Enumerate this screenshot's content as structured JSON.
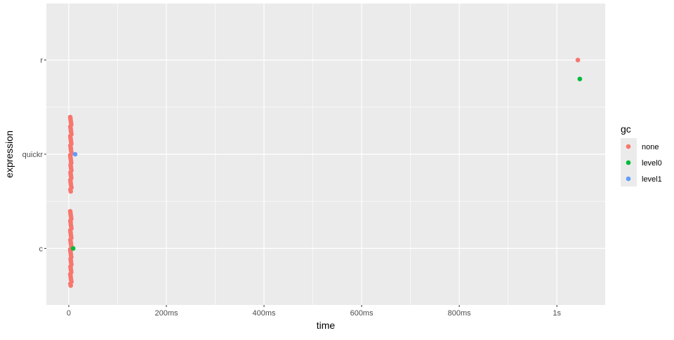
{
  "chart_data": {
    "type": "scatter",
    "xlabel": "time",
    "ylabel": "expression",
    "categories": [
      "c",
      "quickr",
      "r"
    ],
    "xlim_ms": [
      -46,
      1099
    ],
    "x_ticks": [
      {
        "value": 0,
        "label": "0"
      },
      {
        "value": 200,
        "label": "200ms"
      },
      {
        "value": 400,
        "label": "400ms"
      },
      {
        "value": 600,
        "label": "600ms"
      },
      {
        "value": 800,
        "label": "800ms"
      },
      {
        "value": 1000,
        "label": "1s"
      }
    ],
    "grid": true,
    "legend": {
      "title": "gc",
      "position": "right",
      "entries": [
        {
          "name": "none",
          "color": "#F8766D"
        },
        {
          "name": "level0",
          "color": "#00BA38"
        },
        {
          "name": "level1",
          "color": "#619CFF"
        }
      ]
    },
    "series": [
      {
        "name": "none",
        "expression": "c",
        "time_ms": [
          3,
          3.5,
          4,
          4.5,
          5,
          3.2,
          3.8,
          4.2,
          4.8,
          5.3,
          3.1,
          3.6,
          4.1,
          4.6,
          5.1,
          3.3,
          3.9,
          4.3,
          4.9,
          5.5,
          3,
          3.4,
          4,
          4.4,
          5,
          3.7,
          4.2,
          4.7,
          5.2,
          3.5,
          3.9,
          4.5,
          5,
          3.2,
          3.6,
          4.1,
          4.6,
          5.4,
          3.3,
          4
        ]
      },
      {
        "name": "none",
        "expression": "quickr",
        "time_ms": [
          3,
          3.5,
          4,
          4.5,
          5,
          3.2,
          3.8,
          4.2,
          4.8,
          5.3,
          3.1,
          3.6,
          4.1,
          4.6,
          5.1,
          3.3,
          3.9,
          4.3,
          4.9,
          5.5,
          3,
          3.4,
          4,
          4.4,
          5,
          3.7,
          4.2,
          4.7,
          5.2,
          3.5,
          3.9,
          4.5,
          5,
          3.2,
          3.6,
          4.1,
          4.6,
          5.4,
          3.3,
          4
        ]
      },
      {
        "name": "level0",
        "expression": "c",
        "time_ms": [
          9
        ]
      },
      {
        "name": "level1",
        "expression": "quickr",
        "time_ms": [
          13
        ]
      },
      {
        "name": "none",
        "expression": "r",
        "time_ms": [
          1043
        ]
      },
      {
        "name": "level0",
        "expression": "r",
        "time_ms": [
          1047
        ]
      }
    ]
  }
}
